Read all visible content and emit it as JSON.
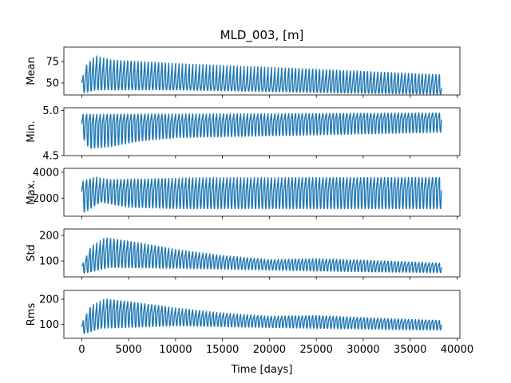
{
  "chart_data": {
    "type": "line",
    "title": "MLD_003, [m]",
    "xlabel": "Time [days]",
    "color": "#1f77b4",
    "xlim": [
      -1900,
      40300
    ],
    "xticks": [
      0,
      5000,
      10000,
      15000,
      20000,
      25000,
      30000,
      35000,
      40000
    ],
    "xtick_labels": [
      "0",
      "5000",
      "10000",
      "15000",
      "20000",
      "25000",
      "30000",
      "35000",
      "40000"
    ],
    "x_start": 0,
    "x_end": 38350,
    "period_days": 365,
    "panels": [
      {
        "name": "mean",
        "ylabel": "Mean",
        "ylim": [
          36,
          92
        ],
        "yticks": [
          50,
          75
        ],
        "ytick_labels": [
          "50",
          "75"
        ],
        "envelope_high": [
          [
            0,
            55
          ],
          [
            500,
            78
          ],
          [
            1500,
            91
          ],
          [
            3000,
            86
          ],
          [
            10000,
            82
          ],
          [
            20000,
            77
          ],
          [
            30000,
            71
          ],
          [
            38350,
            66
          ]
        ],
        "envelope_low": [
          [
            0,
            38
          ],
          [
            1500,
            42
          ],
          [
            10000,
            42
          ],
          [
            20000,
            40
          ],
          [
            30000,
            38
          ],
          [
            38350,
            37
          ]
        ],
        "envelope_mid": [
          [
            0,
            50
          ],
          [
            1500,
            60
          ],
          [
            3000,
            55
          ],
          [
            10000,
            50
          ],
          [
            20000,
            47
          ],
          [
            38350,
            44
          ]
        ]
      },
      {
        "name": "min",
        "ylabel": "Min.",
        "ylim": [
          4.5,
          5.03
        ],
        "yticks": [
          4.5,
          5.0
        ],
        "ytick_labels": [
          "4.5",
          "5.0"
        ],
        "envelope_high": [
          [
            0,
            5.0
          ],
          [
            38350,
            5.0
          ]
        ],
        "envelope_low": [
          [
            0,
            4.72
          ],
          [
            800,
            4.58
          ],
          [
            3000,
            4.6
          ],
          [
            6000,
            4.66
          ],
          [
            10000,
            4.7
          ],
          [
            25000,
            4.73
          ],
          [
            38350,
            4.76
          ]
        ],
        "envelope_mid": [
          [
            0,
            4.85
          ],
          [
            38350,
            4.9
          ]
        ]
      },
      {
        "name": "max",
        "ylabel": "Max.",
        "ylim": [
          600,
          4300
        ],
        "yticks": [
          2000,
          4000
        ],
        "ytick_labels": [
          "2000",
          "4000"
        ],
        "envelope_high": [
          [
            0,
            3600
          ],
          [
            1500,
            4100
          ],
          [
            3000,
            3800
          ],
          [
            8000,
            3900
          ],
          [
            12000,
            4000
          ],
          [
            38350,
            4000
          ]
        ],
        "envelope_low": [
          [
            0,
            1400
          ],
          [
            300,
            900
          ],
          [
            2000,
            1700
          ],
          [
            5000,
            1300
          ],
          [
            10000,
            1200
          ],
          [
            38350,
            1200
          ]
        ],
        "envelope_mid": [
          [
            0,
            2500
          ],
          [
            38350,
            2600
          ]
        ]
      },
      {
        "name": "std",
        "ylabel": "Std",
        "ylim": [
          38,
          225
        ],
        "yticks": [
          100,
          200
        ],
        "ytick_labels": [
          "100",
          "200"
        ],
        "envelope_high": [
          [
            0,
            80
          ],
          [
            1000,
            180
          ],
          [
            2500,
            215
          ],
          [
            5000,
            200
          ],
          [
            10000,
            160
          ],
          [
            15000,
            130
          ],
          [
            20000,
            112
          ],
          [
            25000,
            118
          ],
          [
            30000,
            112
          ],
          [
            38350,
            98
          ]
        ],
        "envelope_low": [
          [
            0,
            50
          ],
          [
            3000,
            75
          ],
          [
            10000,
            72
          ],
          [
            20000,
            65
          ],
          [
            30000,
            58
          ],
          [
            38350,
            55
          ]
        ],
        "envelope_mid": [
          [
            0,
            80
          ],
          [
            2500,
            130
          ],
          [
            10000,
            110
          ],
          [
            20000,
            90
          ],
          [
            38350,
            75
          ]
        ]
      },
      {
        "name": "rms",
        "ylabel": "Rms",
        "ylim": [
          45,
          235
        ],
        "yticks": [
          100,
          200
        ],
        "ytick_labels": [
          "100",
          "200"
        ],
        "envelope_high": [
          [
            0,
            110
          ],
          [
            1000,
            200
          ],
          [
            2500,
            222
          ],
          [
            5000,
            210
          ],
          [
            10000,
            180
          ],
          [
            15000,
            155
          ],
          [
            20000,
            140
          ],
          [
            25000,
            145
          ],
          [
            30000,
            135
          ],
          [
            38350,
            122
          ]
        ],
        "envelope_low": [
          [
            0,
            60
          ],
          [
            2000,
            85
          ],
          [
            10000,
            95
          ],
          [
            20000,
            88
          ],
          [
            30000,
            82
          ],
          [
            38350,
            78
          ]
        ],
        "envelope_mid": [
          [
            0,
            90
          ],
          [
            2500,
            150
          ],
          [
            10000,
            130
          ],
          [
            20000,
            115
          ],
          [
            38350,
            100
          ]
        ]
      }
    ]
  }
}
